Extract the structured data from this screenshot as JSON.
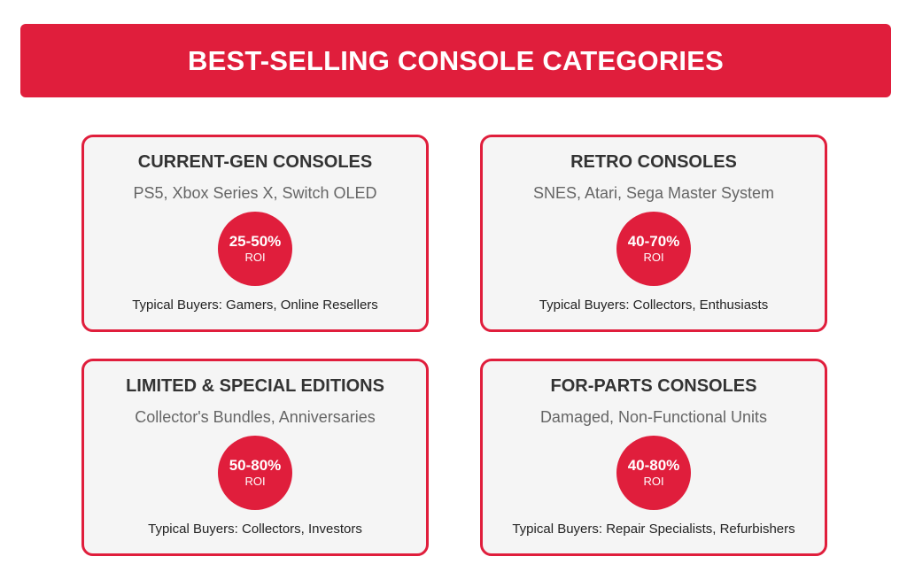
{
  "header": {
    "title": "BEST-SELLING CONSOLE CATEGORIES"
  },
  "cards": [
    {
      "title": "CURRENT-GEN CONSOLES",
      "subtitle": "PS5, Xbox Series X, Switch OLED",
      "roi_value": "25-50%",
      "roi_label": "ROI",
      "buyers": "Typical Buyers: Gamers, Online Resellers"
    },
    {
      "title": "RETRO CONSOLES",
      "subtitle": "SNES, Atari, Sega Master System",
      "roi_value": "40-70%",
      "roi_label": "ROI",
      "buyers": "Typical Buyers: Collectors, Enthusiasts"
    },
    {
      "title": "LIMITED & SPECIAL EDITIONS",
      "subtitle": "Collector's Bundles, Anniversaries",
      "roi_value": "50-80%",
      "roi_label": "ROI",
      "buyers": "Typical Buyers: Collectors, Investors"
    },
    {
      "title": "FOR-PARTS CONSOLES",
      "subtitle": "Damaged, Non-Functional Units",
      "roi_value": "40-80%",
      "roi_label": "ROI",
      "buyers": "Typical Buyers: Repair Specialists, Refurbishers"
    }
  ],
  "colors": {
    "accent": "#e01e3c",
    "card_background": "#f5f5f5",
    "title_text": "#333333",
    "subtitle_text": "#666666"
  }
}
